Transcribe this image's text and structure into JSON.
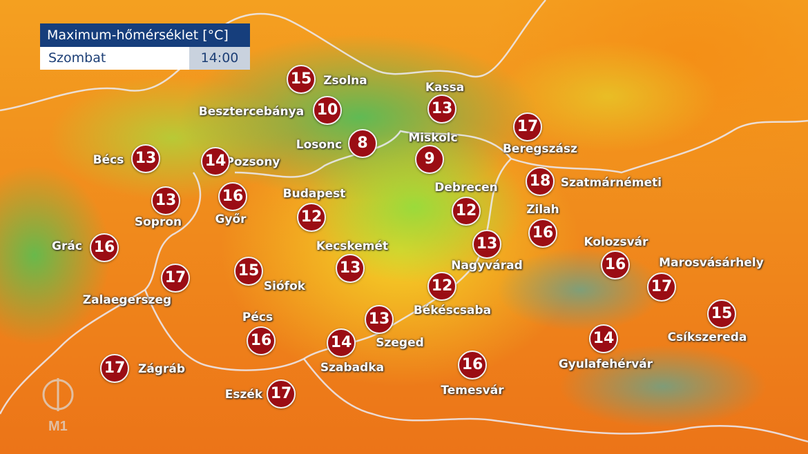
{
  "header": {
    "title": "Maximum-hőmérséklet [°C]",
    "day": "Szombat",
    "time": "14:00"
  },
  "logo": {
    "text": "M1"
  },
  "colors": {
    "temp_badge": "#9b0d14",
    "title_bg": "#163e7c"
  },
  "cities": [
    {
      "name": "Zsolna",
      "value": "15"
    },
    {
      "name": "Besztercebánya",
      "value": "10"
    },
    {
      "name": "Kassa",
      "value": "13"
    },
    {
      "name": "Losonc",
      "value": "8"
    },
    {
      "name": "Miskolc",
      "value": "9"
    },
    {
      "name": "Beregszász",
      "value": "17"
    },
    {
      "name": "Bécs",
      "value": "13"
    },
    {
      "name": "Pozsony",
      "value": "14"
    },
    {
      "name": "Szatmárnémeti",
      "value": "18"
    },
    {
      "name": "Budapest",
      "value": "12"
    },
    {
      "name": "Debrecen",
      "value": "12"
    },
    {
      "name": "Sopron",
      "value": "13"
    },
    {
      "name": "Győr",
      "value": "16"
    },
    {
      "name": "Zilah",
      "value": "16"
    },
    {
      "name": "Grác",
      "value": "16"
    },
    {
      "name": "Kecskemét",
      "value": "13"
    },
    {
      "name": "Nagyvárad",
      "value": "13"
    },
    {
      "name": "Kolozsvár",
      "value": "16"
    },
    {
      "name": "Marosvásárhely",
      "value": "17"
    },
    {
      "name": "Zalaegerszeg",
      "value": "17"
    },
    {
      "name": "Siófok",
      "value": "15"
    },
    {
      "name": "Békéscsaba",
      "value": "12"
    },
    {
      "name": "Csíkszereda",
      "value": "15"
    },
    {
      "name": "Pécs",
      "value": "16"
    },
    {
      "name": "Szeged",
      "value": "13"
    },
    {
      "name": "Szabadka",
      "value": "14"
    },
    {
      "name": "Gyulafehérvár",
      "value": "14"
    },
    {
      "name": "Zágráb",
      "value": "17"
    },
    {
      "name": "Temesvár",
      "value": "16"
    },
    {
      "name": "Eszék",
      "value": "17"
    }
  ]
}
